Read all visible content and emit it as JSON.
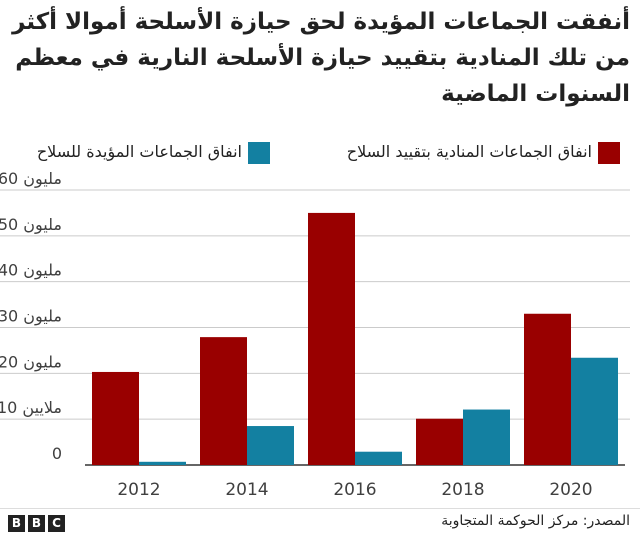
{
  "title": "أنفقت الجماعات المؤيدة لحق حيازة الأسلحة أموالا أكثر من تلك المنادية بتقييد حيازة الأسلحة النارية في معظم السنوات الماضية",
  "legend": {
    "pro": "انفاق الجماعات المؤيدة للسلاح",
    "control": "انفاق الجماعات المنادية بتقييد السلاح"
  },
  "colors": {
    "pro": "#1380A1",
    "control": "#990000",
    "grid": "#cbcbcb",
    "axis": "#333333"
  },
  "chart_data": {
    "type": "bar",
    "categories": [
      "2012",
      "2014",
      "2016",
      "2018",
      "2020"
    ],
    "series": [
      {
        "name": "انفاق الجماعات المنادية بتقييد السلاح",
        "color": "#990000",
        "values": [
          20.3,
          27.9,
          55,
          10.1,
          33
        ]
      },
      {
        "name": "انفاق الجماعات المؤيدة للسلاح",
        "color": "#1380A1",
        "values": [
          0.7,
          8.5,
          2.9,
          12.1,
          23.4
        ]
      }
    ],
    "yticks": [
      {
        "value": 0,
        "label": "0"
      },
      {
        "value": 10,
        "label": "$10 ملايين"
      },
      {
        "value": 20,
        "label": "$20 مليون"
      },
      {
        "value": 30,
        "label": "$30 مليون"
      },
      {
        "value": 40,
        "label": "$40 مليون"
      },
      {
        "value": 50,
        "label": "$50 مليون"
      },
      {
        "value": 60,
        "label": "$60 مليون"
      }
    ],
    "ylim": [
      0,
      60
    ],
    "grid": true
  },
  "footer": {
    "logo": [
      "B",
      "B",
      "C"
    ],
    "source": "المصدر: مركز الحوكمة المتجاوبة"
  }
}
